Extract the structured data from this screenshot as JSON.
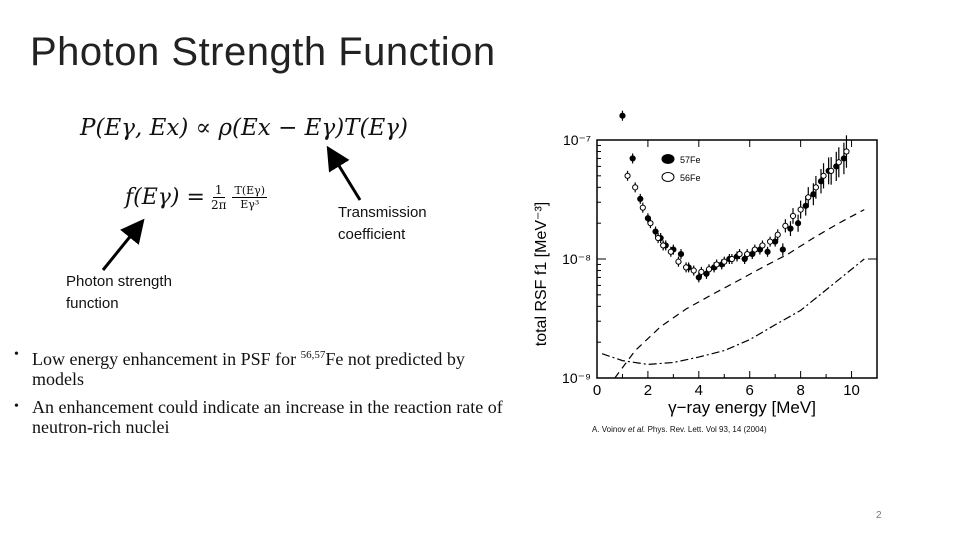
{
  "slide": {
    "title": "Photon Strength Function",
    "page_number": "2"
  },
  "equations": {
    "proportionality": "P(Eγ, Ex) ∝ ρ(Ex − Eγ)T(Eγ)",
    "psf_lhs": "f(Eγ) =",
    "psf_frac1_num": "1",
    "psf_frac1_den": "2π",
    "psf_frac2_num": "T(Eγ)",
    "psf_frac2_den": "Eγ³"
  },
  "annotations": {
    "transmission_line1": "Transmission",
    "transmission_line2": "coefficient",
    "psf_line1": "Photon strength",
    "psf_line2": "function"
  },
  "bullets": [
    {
      "pre": "Low energy enhancement in PSF for ",
      "sup": "56,57",
      "post": "Fe not predicted by models"
    },
    {
      "pre": "An enhancement could indicate an increase in the reaction rate of neutron-rich nuclei",
      "sup": "",
      "post": ""
    }
  ],
  "citation": {
    "authors": "A. Voinov ",
    "etal": "et al.",
    "rest": " Phys. Rev. Lett. Vol 93, 14 (2004)"
  },
  "chart_data": {
    "type": "scatter",
    "ylabel": "total RSF f1 [MeV⁻³]",
    "xlabel": "γ−ray energy [MeV]",
    "xlim": [
      0,
      11
    ],
    "ylim_log10": [
      -9,
      -7
    ],
    "x_ticks": [
      "0",
      "2",
      "4",
      "6",
      "8",
      "10"
    ],
    "y_ticks": [
      "10⁻⁷",
      "10⁻⁸",
      "10⁻⁹"
    ],
    "legend_position": "top-right",
    "series": [
      {
        "name": "57Fe",
        "marker": "filled",
        "x": [
          1.0,
          1.4,
          1.7,
          2.0,
          2.3,
          2.5,
          2.7,
          3.0,
          3.3,
          3.6,
          4.0,
          4.3,
          4.6,
          4.9,
          5.2,
          5.5,
          5.8,
          6.1,
          6.4,
          6.7,
          7.0,
          7.3,
          7.6,
          7.9,
          8.2,
          8.5,
          8.8,
          9.1,
          9.4,
          9.7
        ],
        "y": [
          1.6e-07,
          7e-08,
          3.2e-08,
          2.2e-08,
          1.7e-08,
          1.5e-08,
          1.3e-08,
          1.2e-08,
          1.1e-08,
          8.5e-09,
          7e-09,
          7.5e-09,
          8.5e-09,
          9e-09,
          1e-08,
          1.05e-08,
          1e-08,
          1.1e-08,
          1.2e-08,
          1.15e-08,
          1.4e-08,
          1.2e-08,
          1.8e-08,
          2e-08,
          2.8e-08,
          3.5e-08,
          4.5e-08,
          5.5e-08,
          6e-08,
          7e-08
        ]
      },
      {
        "name": "56Fe",
        "marker": "open",
        "x": [
          1.2,
          1.5,
          1.8,
          2.1,
          2.4,
          2.6,
          2.9,
          3.2,
          3.5,
          3.8,
          4.1,
          4.4,
          4.7,
          5.0,
          5.3,
          5.6,
          5.9,
          6.2,
          6.5,
          6.8,
          7.1,
          7.4,
          7.7,
          8.0,
          8.3,
          8.6,
          8.9,
          9.2,
          9.5,
          9.8
        ],
        "y": [
          5e-08,
          4e-08,
          2.7e-08,
          2e-08,
          1.5e-08,
          1.3e-08,
          1.15e-08,
          9.5e-09,
          8.5e-09,
          8e-09,
          7.8e-09,
          8.2e-09,
          9e-09,
          9.5e-09,
          1e-08,
          1.1e-08,
          1.1e-08,
          1.2e-08,
          1.3e-08,
          1.4e-08,
          1.6e-08,
          1.9e-08,
          2.3e-08,
          2.6e-08,
          3.3e-08,
          4e-08,
          5e-08,
          5.5e-08,
          6.5e-08,
          8e-08
        ]
      },
      {
        "marker": "dashed-line",
        "x": [
          0.7,
          1.5,
          2.5,
          3.5,
          4.5,
          5.5,
          6.5,
          7.5,
          8.5,
          9.5,
          10.5
        ],
        "y": [
          1e-09,
          1.7e-09,
          2.7e-09,
          3.8e-09,
          5e-09,
          6.5e-09,
          8.5e-09,
          1.1e-08,
          1.5e-08,
          2e-08,
          2.6e-08
        ]
      },
      {
        "marker": "dash-dot-line",
        "x": [
          0.2,
          1.0,
          2.0,
          3.0,
          4.0,
          5.0,
          6.0,
          7.0,
          8.0,
          9.0,
          10.5
        ],
        "y": [
          1.6e-09,
          1.4e-09,
          1.3e-09,
          1.35e-09,
          1.5e-09,
          1.7e-09,
          2.1e-09,
          2.8e-09,
          3.7e-09,
          5.5e-09,
          1e-08
        ]
      }
    ]
  }
}
